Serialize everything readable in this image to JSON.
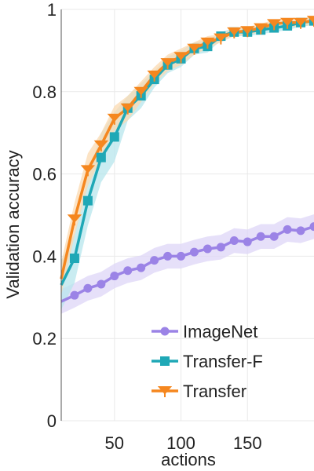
{
  "chart_data": {
    "type": "line",
    "xlabel": "actions",
    "ylabel": "Validation accuracy",
    "xlim": [
      10,
      200
    ],
    "ylim": [
      0,
      1
    ],
    "xticks": [
      50,
      100,
      150
    ],
    "yticks": [
      0,
      0.2,
      0.4,
      0.6,
      0.8,
      1
    ],
    "ytick_labels": [
      "0",
      "0.2",
      "0.4",
      "0.6",
      "0.8",
      "1"
    ],
    "grid": true,
    "legend_position": "bottom-right",
    "series": [
      {
        "name": "ImageNet",
        "color": "#9b83e6",
        "band_color": "#ddd6f7",
        "marker": "circle",
        "x": [
          10,
          20,
          30,
          40,
          50,
          60,
          70,
          80,
          90,
          100,
          110,
          120,
          130,
          140,
          150,
          160,
          170,
          180,
          190,
          200
        ],
        "y": [
          0.29,
          0.305,
          0.322,
          0.332,
          0.352,
          0.365,
          0.372,
          0.39,
          0.4,
          0.4,
          0.41,
          0.418,
          0.422,
          0.438,
          0.435,
          0.448,
          0.448,
          0.465,
          0.462,
          0.472
        ],
        "band": [
          0.03,
          0.03,
          0.03,
          0.03,
          0.03,
          0.03,
          0.03,
          0.03,
          0.03,
          0.03,
          0.03,
          0.03,
          0.03,
          0.03,
          0.03,
          0.03,
          0.03,
          0.03,
          0.03,
          0.03
        ]
      },
      {
        "name": "Transfer-F",
        "color": "#1fa8b6",
        "band_color": "#b7e6ec",
        "marker": "square",
        "x": [
          10,
          20,
          30,
          40,
          50,
          60,
          70,
          80,
          90,
          100,
          110,
          120,
          130,
          140,
          150,
          160,
          170,
          180,
          190,
          200
        ],
        "y": [
          0.33,
          0.395,
          0.535,
          0.64,
          0.69,
          0.76,
          0.79,
          0.83,
          0.865,
          0.88,
          0.905,
          0.91,
          0.935,
          0.945,
          0.945,
          0.95,
          0.955,
          0.96,
          0.968,
          0.972
        ],
        "band": [
          0.06,
          0.06,
          0.06,
          0.06,
          0.06,
          0.03,
          0.03,
          0.02,
          0.02,
          0.02,
          0.015,
          0.015,
          0.01,
          0.01,
          0.01,
          0.01,
          0.01,
          0.01,
          0.01,
          0.01
        ]
      },
      {
        "name": "Transfer",
        "color": "#f5871f",
        "band_color": "#fbd9b0",
        "marker": "tri_down",
        "x": [
          10,
          20,
          30,
          40,
          50,
          60,
          70,
          80,
          90,
          100,
          110,
          120,
          130,
          140,
          150,
          160,
          170,
          180,
          190,
          200
        ],
        "y": [
          0.345,
          0.49,
          0.61,
          0.67,
          0.735,
          0.76,
          0.8,
          0.84,
          0.87,
          0.885,
          0.905,
          0.92,
          0.93,
          0.945,
          0.948,
          0.955,
          0.965,
          0.968,
          0.968,
          0.973
        ],
        "band": [
          0.04,
          0.04,
          0.04,
          0.03,
          0.03,
          0.03,
          0.025,
          0.02,
          0.02,
          0.02,
          0.015,
          0.015,
          0.01,
          0.01,
          0.01,
          0.01,
          0.01,
          0.01,
          0.01,
          0.01
        ]
      }
    ]
  }
}
